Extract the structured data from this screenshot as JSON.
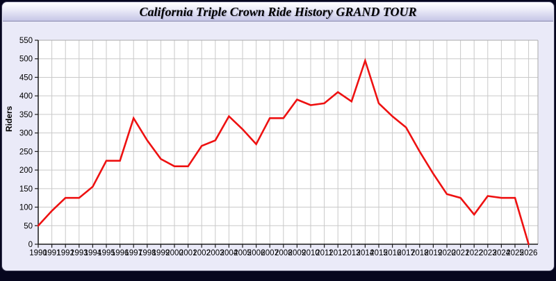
{
  "header": {
    "title": "California Triple Crown Ride History GRAND TOUR"
  },
  "colors": {
    "frame": "#06061e",
    "card_bg": "#eaeaf8",
    "plot_bg": "#ffffff",
    "grid": "#c9c9c9",
    "axis": "#1a1a1a",
    "line": "#ee1111",
    "header_gradient_top": "#ffffff",
    "header_gradient_bottom": "#c6c6e6"
  },
  "chart_data": {
    "type": "line",
    "title": "California Triple Crown Ride History GRAND TOUR",
    "xlabel": "",
    "ylabel": "Riders",
    "grid": true,
    "legend_position": "none",
    "ylim": [
      0,
      550
    ],
    "ytick_step": 50,
    "categories": [
      1990,
      1991,
      1992,
      1993,
      1994,
      1995,
      1996,
      1997,
      1998,
      1999,
      2000,
      2001,
      2002,
      2003,
      2004,
      2005,
      2006,
      2007,
      2008,
      2009,
      2010,
      2011,
      2012,
      2013,
      2014,
      2015,
      2016,
      2017,
      2018,
      2019,
      2020,
      2021,
      2022,
      2023,
      2024,
      2025,
      2026
    ],
    "series": [
      {
        "name": "Riders",
        "color": "#ee1111",
        "values": [
          50,
          90,
          125,
          125,
          155,
          225,
          225,
          340,
          280,
          230,
          210,
          210,
          265,
          280,
          345,
          310,
          270,
          340,
          340,
          390,
          375,
          380,
          410,
          385,
          495,
          380,
          345,
          315,
          250,
          190,
          135,
          125,
          80,
          130,
          125,
          125,
          0
        ]
      }
    ]
  }
}
